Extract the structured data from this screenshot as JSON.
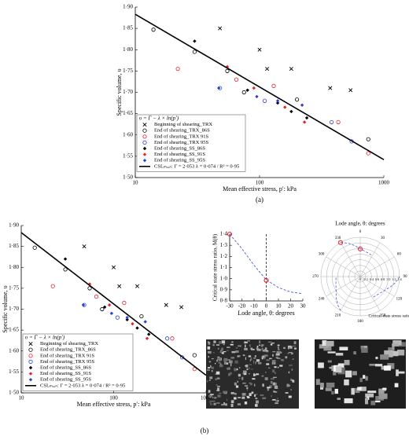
{
  "panels": {
    "a": "(a)",
    "b": "(b)"
  },
  "chart_data": [
    {
      "type": "scatter",
      "xlabel": "Mean effective stress, p′: kPa",
      "ylabel": "Specific volume, υ",
      "log_x": true,
      "xlim": [
        10,
        1000
      ],
      "xticks": [
        10,
        100,
        1000
      ],
      "ylim": [
        1.5,
        1.9
      ],
      "yticks": [
        {
          "value": 1.5,
          "label": "1·50"
        },
        {
          "value": 1.55,
          "label": "1·55"
        },
        {
          "value": 1.6,
          "label": "1·60"
        },
        {
          "value": 1.65,
          "label": "1·65"
        },
        {
          "value": 1.7,
          "label": "1·70"
        },
        {
          "value": 1.75,
          "label": "1·75"
        },
        {
          "value": 1.8,
          "label": "1·80"
        },
        {
          "value": 1.85,
          "label": "1·85"
        },
        {
          "value": 1.9,
          "label": "1·90"
        }
      ],
      "legend_title": "υ = Γ − λ × ln(p′)",
      "series": [
        {
          "name": "Beginning of shearing_TRX",
          "color": "#000000",
          "marker": "x",
          "x": [
            48,
            100,
            115,
            180,
            370,
            540
          ],
          "values": [
            1.85,
            1.8,
            1.755,
            1.755,
            1.71,
            1.705
          ]
        },
        {
          "name": "End of shearing_TRX_86S",
          "color": "#000000",
          "marker": "o",
          "x": [
            14,
            30,
            55,
            75,
            200,
            750
          ],
          "values": [
            1.847,
            1.795,
            1.75,
            1.7,
            1.683,
            1.59
          ]
        },
        {
          "name": "End of shearing_TRX 91S",
          "color": "#e8202a",
          "marker": "o",
          "x": [
            22,
            65,
            130,
            430,
            750
          ],
          "values": [
            1.755,
            1.73,
            1.715,
            1.63,
            1.557
          ]
        },
        {
          "name": "End of shearing_TRX 95S",
          "color": "#2a3fd6",
          "marker": "o",
          "x": [
            48,
            110,
            380,
            550
          ],
          "values": [
            1.71,
            1.68,
            1.63,
            1.585
          ]
        },
        {
          "name": "End of shearing_SS_86S",
          "color": "#000000",
          "marker": "d",
          "x": [
            30,
            80,
            140,
            180,
            240
          ],
          "values": [
            1.82,
            1.705,
            1.675,
            1.655,
            1.64
          ]
        },
        {
          "name": "End of shearing_SS_91S",
          "color": "#e8202a",
          "marker": "d",
          "x": [
            55,
            90,
            160,
            230
          ],
          "values": [
            1.76,
            1.71,
            1.665,
            1.63
          ]
        },
        {
          "name": "End of shearing_SS_95S",
          "color": "#2a3fd6",
          "marker": "d",
          "x": [
            47,
            95,
            140,
            220
          ],
          "values": [
            1.71,
            1.69,
            1.68,
            1.67
          ]
        },
        {
          "name": "CSLₘₑₐₙ: Γ = 2·053 λ = 0·074 / R² = 0·95",
          "color": "#000000",
          "marker": "line",
          "x": [
            10,
            1000
          ],
          "values": [
            1.883,
            1.542
          ]
        }
      ]
    },
    {
      "type": "line",
      "xlabel": "Lode angle, θ: degrees",
      "ylabel": "Critical state stress ratio, M(θ)",
      "xlim": [
        -30,
        30
      ],
      "xticks": [
        -30,
        -20,
        -10,
        0,
        10,
        20,
        30
      ],
      "ylim": [
        0.8,
        1.4
      ],
      "yticks": [
        {
          "value": 0.8,
          "label": "0·8"
        },
        {
          "value": 0.9,
          "label": "0·9"
        },
        {
          "value": 1.0,
          "label": "1·0"
        },
        {
          "value": 1.1,
          "label": "1·1"
        },
        {
          "value": 1.2,
          "label": "1·2"
        },
        {
          "value": 1.3,
          "label": "1·3"
        },
        {
          "value": 1.4,
          "label": "1·4"
        }
      ],
      "x": [
        -30,
        -20,
        -10,
        0,
        10,
        20,
        30
      ],
      "values": [
        1.4,
        1.27,
        1.12,
        0.99,
        0.92,
        0.88,
        0.865
      ],
      "color": "#4a5fd8",
      "points": {
        "x": [
          -30,
          0
        ],
        "values": [
          1.4,
          0.985
        ],
        "color": "#e8202a"
      }
    },
    {
      "type": "polar",
      "title": "Lode angle, θ: degrees",
      "rlabel": "Critical state stress ratio, M(θ)",
      "angles": [
        0,
        30,
        60,
        90,
        120,
        150,
        180,
        210,
        240,
        270,
        300,
        330
      ],
      "rlim": [
        0,
        1.4
      ],
      "rticks": [
        0,
        {
          "value": 0.2,
          "label": "0·2"
        },
        {
          "value": 0.4,
          "label": "0·4"
        },
        {
          "value": 0.6,
          "label": "0·6"
        },
        {
          "value": 0.8,
          "label": "0·8"
        },
        {
          "value": 1.0,
          "label": "1·0"
        },
        {
          "value": 1.2,
          "label": "1·2"
        },
        {
          "value": 1.4,
          "label": "1·4"
        }
      ]
    }
  ]
}
